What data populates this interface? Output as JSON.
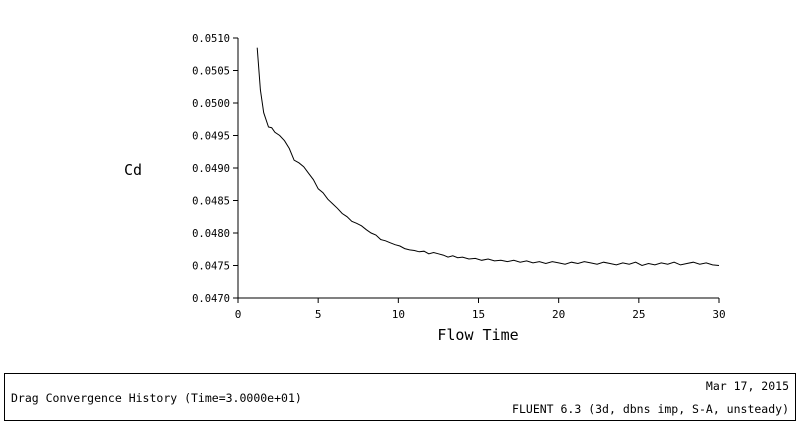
{
  "chart_data": {
    "type": "line",
    "title": "Drag Convergence History",
    "xlabel": "Flow Time",
    "ylabel": "Cd",
    "xlim": [
      0,
      30
    ],
    "ylim": [
      0.047,
      0.051
    ],
    "x_ticks": [
      "0",
      "5",
      "10",
      "15",
      "20",
      "25",
      "30"
    ],
    "y_ticks": [
      "0.0470",
      "0.0475",
      "0.0480",
      "0.0485",
      "0.0490",
      "0.0495",
      "0.0500",
      "0.0505",
      "0.0510"
    ],
    "grid": false,
    "series": [
      {
        "x": [
          1.2,
          1.4,
          1.6,
          1.9,
          2.1,
          2.3,
          2.6,
          2.9,
          3.2,
          3.5,
          3.8,
          4.1,
          4.4,
          4.7,
          5.0,
          5.3,
          5.6,
          5.9,
          6.2,
          6.5,
          6.8,
          7.1,
          7.4,
          7.7,
          8.0,
          8.3,
          8.6,
          8.9,
          9.2,
          9.5,
          9.8,
          10.1,
          10.4,
          10.7,
          11.0,
          11.3,
          11.6,
          11.9,
          12.2,
          12.5,
          12.8,
          13.1,
          13.4,
          13.7,
          14.0,
          14.4,
          14.8,
          15.2,
          15.6,
          16.0,
          16.4,
          16.8,
          17.2,
          17.6,
          18.0,
          18.4,
          18.8,
          19.2,
          19.6,
          20.0,
          20.4,
          20.8,
          21.2,
          21.6,
          22.0,
          22.4,
          22.8,
          23.2,
          23.6,
          24.0,
          24.4,
          24.8,
          25.2,
          25.6,
          26.0,
          26.4,
          26.8,
          27.2,
          27.6,
          28.0,
          28.4,
          28.8,
          29.2,
          29.6,
          30.0
        ],
        "y": [
          0.05085,
          0.0502,
          0.04985,
          0.04963,
          0.04962,
          0.04955,
          0.0495,
          0.04942,
          0.0493,
          0.04912,
          0.04908,
          0.04902,
          0.04892,
          0.04882,
          0.04868,
          0.04862,
          0.04852,
          0.04845,
          0.04838,
          0.0483,
          0.04825,
          0.04818,
          0.04815,
          0.04811,
          0.04805,
          0.048,
          0.04797,
          0.0479,
          0.04788,
          0.04785,
          0.04782,
          0.0478,
          0.04776,
          0.04774,
          0.04773,
          0.04771,
          0.04772,
          0.04768,
          0.0477,
          0.04768,
          0.04766,
          0.04763,
          0.04765,
          0.04762,
          0.04763,
          0.0476,
          0.04761,
          0.04758,
          0.0476,
          0.04757,
          0.04758,
          0.04756,
          0.04758,
          0.04755,
          0.04757,
          0.04754,
          0.04756,
          0.04753,
          0.04756,
          0.04754,
          0.04752,
          0.04755,
          0.04753,
          0.04756,
          0.04754,
          0.04752,
          0.04755,
          0.04753,
          0.04751,
          0.04754,
          0.04752,
          0.04755,
          0.0475,
          0.04753,
          0.04751,
          0.04754,
          0.04752,
          0.04755,
          0.04751,
          0.04753,
          0.04755,
          0.04752,
          0.04754,
          0.04751,
          0.0475
        ]
      }
    ]
  },
  "caption": {
    "title": "Drag Convergence History  (Time=3.0000e+01)",
    "date": "Mar 17, 2015",
    "solver": "FLUENT 6.3 (3d, dbns imp, S-A, unsteady)"
  }
}
